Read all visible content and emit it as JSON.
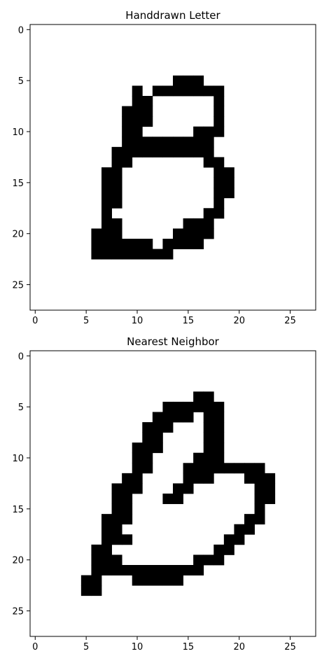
{
  "colors": {
    "ink": "#000000",
    "paper": "#ffffff",
    "frame": "#000000"
  },
  "chart_data": [
    {
      "type": "heatmap",
      "title": "Handdrawn Letter",
      "xlabel": "",
      "ylabel": "",
      "grid_size": [
        28,
        28
      ],
      "xlim": [
        -0.5,
        27.5
      ],
      "ylim": [
        27.5,
        -0.5
      ],
      "x_ticks": [
        0,
        5,
        10,
        15,
        20,
        25
      ],
      "y_ticks": [
        0,
        5,
        10,
        15,
        20,
        25
      ],
      "grid": false,
      "colormap": "binary (1 = black)",
      "cells_encoding": "black cells as [row, col_start, col_end] inclusive",
      "black_runs": [
        [
          5,
          14,
          16
        ],
        [
          6,
          10,
          10
        ],
        [
          6,
          12,
          18
        ],
        [
          7,
          10,
          11
        ],
        [
          7,
          18,
          18
        ],
        [
          8,
          9,
          11
        ],
        [
          8,
          18,
          18
        ],
        [
          9,
          9,
          11
        ],
        [
          9,
          18,
          18
        ],
        [
          10,
          9,
          10
        ],
        [
          10,
          16,
          18
        ],
        [
          11,
          9,
          17
        ],
        [
          12,
          8,
          17
        ],
        [
          13,
          8,
          9
        ],
        [
          13,
          17,
          18
        ],
        [
          14,
          7,
          8
        ],
        [
          14,
          18,
          19
        ],
        [
          15,
          7,
          8
        ],
        [
          15,
          18,
          19
        ],
        [
          16,
          7,
          8
        ],
        [
          16,
          18,
          19
        ],
        [
          17,
          7,
          8
        ],
        [
          17,
          18,
          18
        ],
        [
          18,
          7,
          7
        ],
        [
          18,
          17,
          18
        ],
        [
          19,
          7,
          8
        ],
        [
          19,
          15,
          17
        ],
        [
          20,
          6,
          8
        ],
        [
          20,
          14,
          17
        ],
        [
          21,
          6,
          11
        ],
        [
          21,
          13,
          16
        ],
        [
          22,
          6,
          13
        ]
      ]
    },
    {
      "type": "heatmap",
      "title": "Nearest Neighbor",
      "xlabel": "",
      "ylabel": "",
      "grid_size": [
        28,
        28
      ],
      "xlim": [
        -0.5,
        27.5
      ],
      "ylim": [
        27.5,
        -0.5
      ],
      "x_ticks": [
        0,
        5,
        10,
        15,
        20,
        25
      ],
      "y_ticks": [
        0,
        5,
        10,
        15,
        20,
        25
      ],
      "grid": false,
      "colormap": "binary (1 = black)",
      "cells_encoding": "black cells as [row, col_start, col_end] inclusive",
      "black_runs": [
        [
          4,
          16,
          17
        ],
        [
          5,
          13,
          18
        ],
        [
          6,
          12,
          15
        ],
        [
          6,
          17,
          18
        ],
        [
          7,
          11,
          13
        ],
        [
          7,
          17,
          18
        ],
        [
          8,
          11,
          12
        ],
        [
          8,
          17,
          18
        ],
        [
          9,
          10,
          12
        ],
        [
          9,
          17,
          18
        ],
        [
          10,
          10,
          11
        ],
        [
          10,
          16,
          18
        ],
        [
          11,
          10,
          11
        ],
        [
          11,
          15,
          22
        ],
        [
          12,
          9,
          10
        ],
        [
          12,
          15,
          17
        ],
        [
          12,
          21,
          23
        ],
        [
          13,
          8,
          10
        ],
        [
          13,
          14,
          15
        ],
        [
          13,
          22,
          23
        ],
        [
          14,
          8,
          9
        ],
        [
          14,
          13,
          14
        ],
        [
          14,
          22,
          23
        ],
        [
          15,
          8,
          9
        ],
        [
          15,
          22,
          22
        ],
        [
          16,
          7,
          9
        ],
        [
          16,
          21,
          22
        ],
        [
          17,
          7,
          8
        ],
        [
          17,
          20,
          21
        ],
        [
          18,
          7,
          9
        ],
        [
          18,
          19,
          20
        ],
        [
          19,
          6,
          7
        ],
        [
          19,
          18,
          19
        ],
        [
          20,
          6,
          8
        ],
        [
          20,
          16,
          18
        ],
        [
          21,
          6,
          16
        ],
        [
          22,
          5,
          6
        ],
        [
          22,
          10,
          14
        ],
        [
          23,
          5,
          6
        ]
      ]
    }
  ]
}
